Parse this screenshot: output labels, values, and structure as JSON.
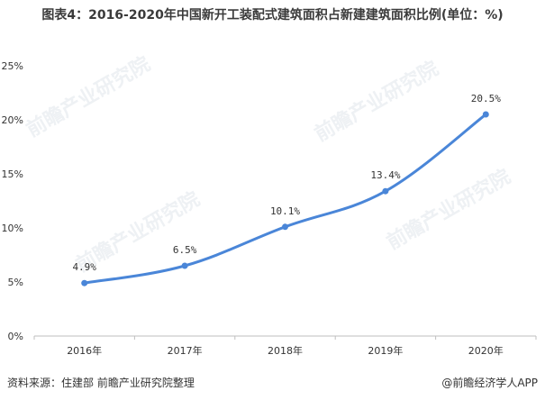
{
  "title": "图表4：2016-2020年中国新开工装配式建筑面积占新建建筑面积比例(单位：%)",
  "watermark_text": "前瞻产业研究院",
  "footer": {
    "source": "资料来源：住建部 前瞻产业研究院整理",
    "brand": "@前瞻经济学人APP"
  },
  "colors": {
    "line": "#4a86d8",
    "axis": "#bfbfbf",
    "label": "#333333"
  },
  "chart_data": {
    "type": "line",
    "title": "图表4：2016-2020年中国新开工装配式建筑面积占新建建筑面积比例(单位：%)",
    "categories": [
      "2016年",
      "2017年",
      "2018年",
      "2019年",
      "2020年"
    ],
    "series": [
      {
        "values": [
          4.9,
          6.5,
          10.1,
          13.4,
          20.5
        ]
      }
    ],
    "data_labels": [
      "4.9%",
      "6.5%",
      "10.1%",
      "13.4%",
      "20.5%"
    ],
    "y_ticks": [
      "0%",
      "5%",
      "10%",
      "15%",
      "20%",
      "25%"
    ],
    "ylim": [
      0,
      25
    ],
    "grid": false,
    "legend": "none"
  }
}
